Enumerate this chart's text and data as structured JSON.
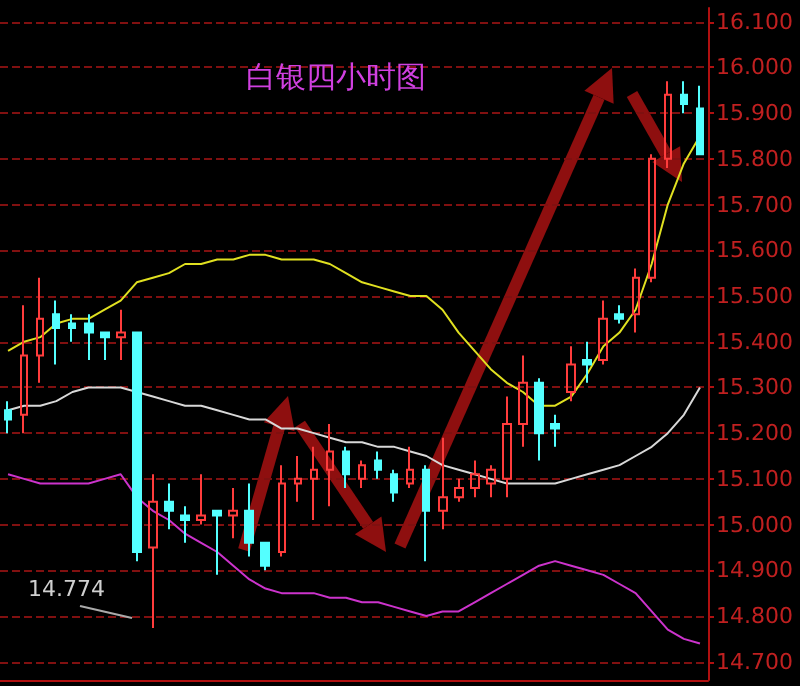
{
  "chart_data": {
    "type": "candlestick",
    "title": "白银四小时图",
    "categories": [
      null,
      null,
      null,
      null,
      null,
      null,
      null,
      null,
      null,
      null,
      null,
      null,
      null,
      null,
      null,
      null,
      null,
      null,
      null,
      null,
      null,
      null,
      null,
      null,
      null,
      null,
      null,
      null,
      null,
      null,
      null,
      null,
      null,
      null,
      null,
      null,
      null,
      null,
      null,
      null,
      null,
      null,
      null,
      null
    ],
    "ohlc": [
      [
        15.25,
        15.27,
        15.2,
        15.23
      ],
      [
        15.24,
        15.48,
        15.2,
        15.37
      ],
      [
        15.37,
        15.54,
        15.31,
        15.45
      ],
      [
        15.46,
        15.49,
        15.35,
        15.43
      ],
      [
        15.44,
        15.46,
        15.4,
        15.43
      ],
      [
        15.44,
        15.46,
        15.36,
        15.42
      ],
      [
        15.42,
        15.42,
        15.36,
        15.41
      ],
      [
        15.41,
        15.47,
        15.36,
        15.42
      ],
      [
        15.42,
        15.42,
        14.92,
        14.94
      ],
      [
        14.95,
        15.11,
        14.774,
        15.05
      ],
      [
        15.05,
        15.09,
        14.99,
        15.03
      ],
      [
        15.02,
        15.04,
        14.96,
        15.01
      ],
      [
        15.01,
        15.11,
        15.0,
        15.02
      ],
      [
        15.03,
        15.03,
        14.89,
        15.02
      ],
      [
        15.02,
        15.08,
        14.97,
        15.03
      ],
      [
        15.03,
        15.09,
        14.93,
        14.96
      ],
      [
        14.96,
        14.96,
        14.9,
        14.91
      ],
      [
        14.94,
        15.13,
        14.93,
        15.09
      ],
      [
        15.09,
        15.15,
        15.05,
        15.1
      ],
      [
        15.1,
        15.17,
        15.01,
        15.12
      ],
      [
        15.12,
        15.22,
        15.04,
        15.16
      ],
      [
        15.16,
        15.17,
        15.08,
        15.11
      ],
      [
        15.1,
        15.14,
        15.08,
        15.13
      ],
      [
        15.14,
        15.16,
        15.1,
        15.12
      ],
      [
        15.11,
        15.12,
        15.05,
        15.07
      ],
      [
        15.09,
        15.17,
        15.08,
        15.12
      ],
      [
        15.12,
        15.13,
        14.92,
        15.03
      ],
      [
        15.03,
        15.19,
        14.99,
        15.06
      ],
      [
        15.06,
        15.1,
        15.05,
        15.08
      ],
      [
        15.08,
        15.14,
        15.06,
        15.11
      ],
      [
        15.09,
        15.13,
        15.06,
        15.12
      ],
      [
        15.1,
        15.28,
        15.06,
        15.22
      ],
      [
        15.22,
        15.37,
        15.17,
        15.31
      ],
      [
        15.31,
        15.32,
        15.14,
        15.2
      ],
      [
        15.22,
        15.24,
        15.17,
        15.21
      ],
      [
        15.29,
        15.39,
        15.27,
        15.35
      ],
      [
        15.36,
        15.4,
        15.31,
        15.35
      ],
      [
        15.36,
        15.49,
        15.35,
        15.45
      ],
      [
        15.46,
        15.48,
        15.44,
        15.45
      ],
      [
        15.46,
        15.56,
        15.42,
        15.54
      ],
      [
        15.54,
        15.81,
        15.53,
        15.8
      ],
      [
        15.8,
        15.97,
        15.78,
        15.94
      ],
      [
        15.94,
        15.97,
        15.9,
        15.92
      ],
      [
        15.91,
        15.96,
        15.81,
        15.81
      ]
    ],
    "colors": [
      "#54ffff",
      "#ff3c3c",
      "#ff3c3c",
      "#54ffff",
      "#54ffff",
      "#54ffff",
      "#54ffff",
      "#ff3c3c",
      "#54ffff",
      "#ff3c3c",
      "#54ffff",
      "#54ffff",
      "#ff3c3c",
      "#54ffff",
      "#ff3c3c",
      "#54ffff",
      "#54ffff",
      "#ff3c3c",
      "#ff3c3c",
      "#ff3c3c",
      "#ff3c3c",
      "#54ffff",
      "#ff3c3c",
      "#54ffff",
      "#54ffff",
      "#ff3c3c",
      "#54ffff",
      "#ff3c3c",
      "#ff3c3c",
      "#ff3c3c",
      "#ff3c3c",
      "#ff3c3c",
      "#ff3c3c",
      "#54ffff",
      "#54ffff",
      "#ff3c3c",
      "#54ffff",
      "#ff3c3c",
      "#54ffff",
      "#ff3c3c",
      "#ff3c3c",
      "#ff3c3c",
      "#54ffff",
      "#54ffff"
    ],
    "series": [
      {
        "type": "line",
        "color": "#e0e020",
        "values": [
          15.38,
          15.4,
          15.41,
          15.44,
          15.45,
          15.45,
          15.47,
          15.49,
          15.53,
          15.54,
          15.55,
          15.57,
          15.57,
          15.58,
          15.58,
          15.59,
          15.59,
          15.58,
          15.58,
          15.58,
          15.57,
          15.55,
          15.53,
          15.52,
          15.51,
          15.5,
          15.5,
          15.47,
          15.42,
          15.38,
          15.34,
          15.31,
          15.29,
          15.26,
          15.26,
          15.28,
          15.33,
          15.39,
          15.42,
          15.47,
          15.57,
          15.7,
          15.79,
          15.85
        ]
      },
      {
        "type": "line",
        "color": "#d8d8d8",
        "values": [
          15.25,
          15.26,
          15.26,
          15.27,
          15.29,
          15.3,
          15.3,
          15.3,
          15.29,
          15.28,
          15.27,
          15.26,
          15.26,
          15.25,
          15.24,
          15.23,
          15.23,
          15.21,
          15.21,
          15.2,
          15.19,
          15.18,
          15.18,
          15.17,
          15.17,
          15.16,
          15.15,
          15.13,
          15.12,
          15.11,
          15.1,
          15.09,
          15.09,
          15.09,
          15.09,
          15.1,
          15.11,
          15.12,
          15.13,
          15.15,
          15.17,
          15.2,
          15.24,
          15.3
        ]
      },
      {
        "type": "line",
        "color": "#cc33cc",
        "values": [
          15.11,
          15.1,
          15.09,
          15.09,
          15.09,
          15.09,
          15.1,
          15.11,
          15.06,
          15.03,
          15.01,
          14.98,
          14.96,
          14.94,
          14.91,
          14.88,
          14.86,
          14.85,
          14.85,
          14.85,
          14.84,
          14.84,
          14.83,
          14.83,
          14.82,
          14.81,
          14.8,
          14.81,
          14.81,
          14.83,
          14.85,
          14.87,
          14.89,
          14.91,
          14.92,
          14.91,
          14.9,
          14.89,
          14.87,
          14.85,
          14.81,
          14.77,
          14.75,
          14.74
        ]
      }
    ],
    "annotations": [
      "14.774"
    ],
    "ylim": [
      14.66,
      16.13
    ],
    "yticks": [
      {
        "value": 14.7,
        "label": "14.700"
      },
      {
        "value": 14.8,
        "label": "14.800"
      },
      {
        "value": 14.9,
        "label": "14.900"
      },
      {
        "value": 15.0,
        "label": "15.000"
      },
      {
        "value": 15.1,
        "label": "15.100"
      },
      {
        "value": 15.2,
        "label": "15.200"
      },
      {
        "value": 15.3,
        "label": "15.300"
      },
      {
        "value": 15.4,
        "label": "15.400"
      },
      {
        "value": 15.5,
        "label": "15.500"
      },
      {
        "value": 15.6,
        "label": "15.600"
      },
      {
        "value": 15.7,
        "label": "15.700"
      },
      {
        "value": 15.8,
        "label": "15.800"
      },
      {
        "value": 15.9,
        "label": "15.900"
      },
      {
        "value": 16.0,
        "label": "16.000"
      },
      {
        "value": 16.1,
        "label": "16.100"
      }
    ],
    "grid": "y",
    "tick_labels": "y",
    "line_style": "solid"
  }
}
